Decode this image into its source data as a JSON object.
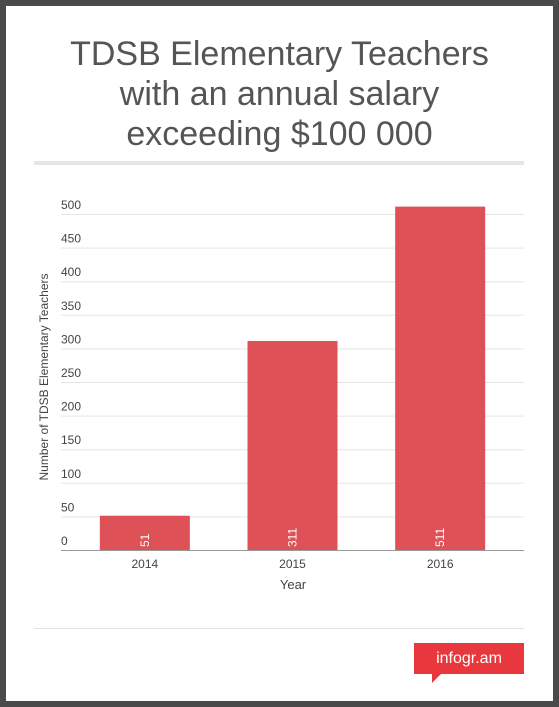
{
  "chart_data": {
    "type": "bar",
    "title": "TDSB Elementary Teachers\nwith an annual salary\nexceeding $100 000",
    "xlabel": "Year",
    "ylabel": "Number of TDSB Elementary Teachers",
    "categories": [
      "2014",
      "2015",
      "2016"
    ],
    "values": [
      51,
      311,
      511
    ],
    "data_labels": [
      "51",
      "311",
      "511"
    ],
    "yticks": [
      0,
      50,
      100,
      150,
      200,
      250,
      300,
      350,
      400,
      450,
      500
    ],
    "ylim": [
      0,
      500
    ],
    "grid": true,
    "legend": "none",
    "colors": {
      "bar": "#dd5157",
      "grid": "#e5e5e5",
      "text": "#444444",
      "label": "#ffffff"
    }
  },
  "brand": {
    "label": "infogr.am",
    "color": "#e8383d"
  }
}
